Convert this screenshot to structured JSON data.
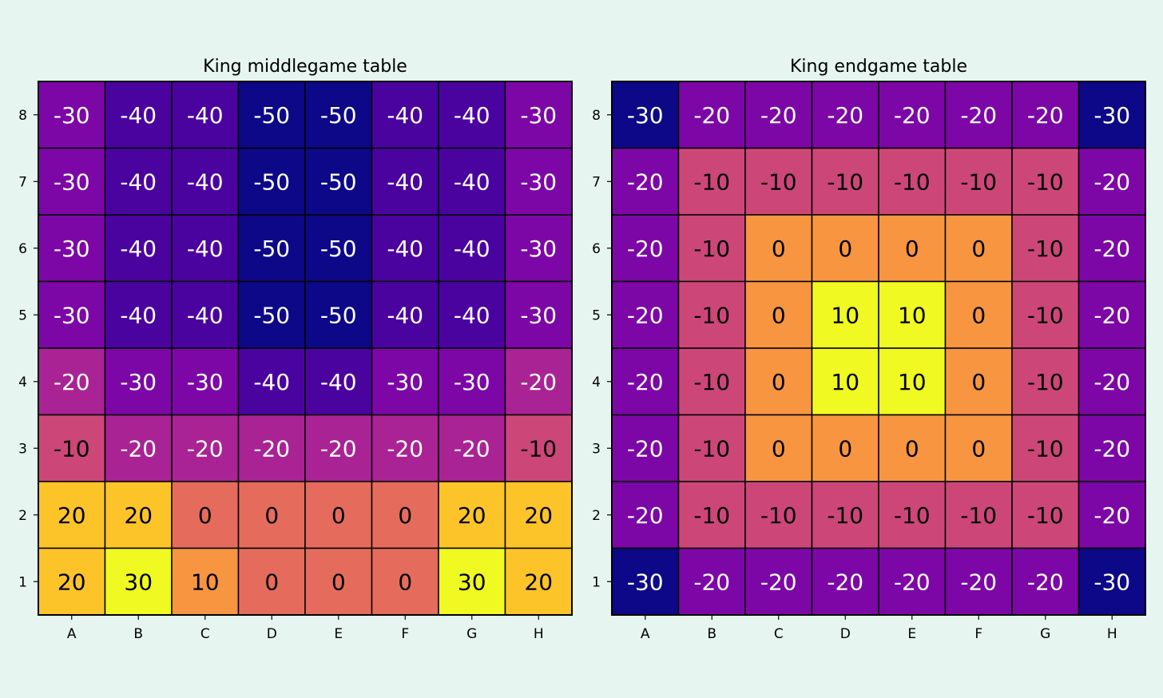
{
  "chart_data": [
    {
      "type": "heatmap",
      "title": "King middlegame table",
      "columns": [
        "A",
        "B",
        "C",
        "D",
        "E",
        "F",
        "G",
        "H"
      ],
      "rows": [
        "8",
        "7",
        "6",
        "5",
        "4",
        "3",
        "2",
        "1"
      ],
      "values": [
        [
          -30,
          -40,
          -40,
          -50,
          -50,
          -40,
          -40,
          -30
        ],
        [
          -30,
          -40,
          -40,
          -50,
          -50,
          -40,
          -40,
          -30
        ],
        [
          -30,
          -40,
          -40,
          -50,
          -50,
          -40,
          -40,
          -30
        ],
        [
          -30,
          -40,
          -40,
          -50,
          -50,
          -40,
          -40,
          -30
        ],
        [
          -20,
          -30,
          -30,
          -40,
          -40,
          -30,
          -30,
          -20
        ],
        [
          -10,
          -20,
          -20,
          -20,
          -20,
          -20,
          -20,
          -10
        ],
        [
          20,
          20,
          0,
          0,
          0,
          0,
          20,
          20
        ],
        [
          20,
          30,
          10,
          0,
          0,
          0,
          30,
          20
        ]
      ],
      "color_range": [
        -50,
        30
      ],
      "colormap": "plasma"
    },
    {
      "type": "heatmap",
      "title": "King endgame table",
      "columns": [
        "A",
        "B",
        "C",
        "D",
        "E",
        "F",
        "G",
        "H"
      ],
      "rows": [
        "8",
        "7",
        "6",
        "5",
        "4",
        "3",
        "2",
        "1"
      ],
      "values": [
        [
          -30,
          -20,
          -20,
          -20,
          -20,
          -20,
          -20,
          -30
        ],
        [
          -20,
          -10,
          -10,
          -10,
          -10,
          -10,
          -10,
          -20
        ],
        [
          -20,
          -10,
          0,
          0,
          0,
          0,
          -10,
          -20
        ],
        [
          -20,
          -10,
          0,
          10,
          10,
          0,
          -10,
          -20
        ],
        [
          -20,
          -10,
          0,
          10,
          10,
          0,
          -10,
          -20
        ],
        [
          -20,
          -10,
          0,
          0,
          0,
          0,
          -10,
          -20
        ],
        [
          -20,
          -10,
          -10,
          -10,
          -10,
          -10,
          -10,
          -20
        ],
        [
          -30,
          -20,
          -20,
          -20,
          -20,
          -20,
          -20,
          -30
        ]
      ],
      "color_range": [
        -30,
        10
      ],
      "colormap": "plasma"
    }
  ]
}
